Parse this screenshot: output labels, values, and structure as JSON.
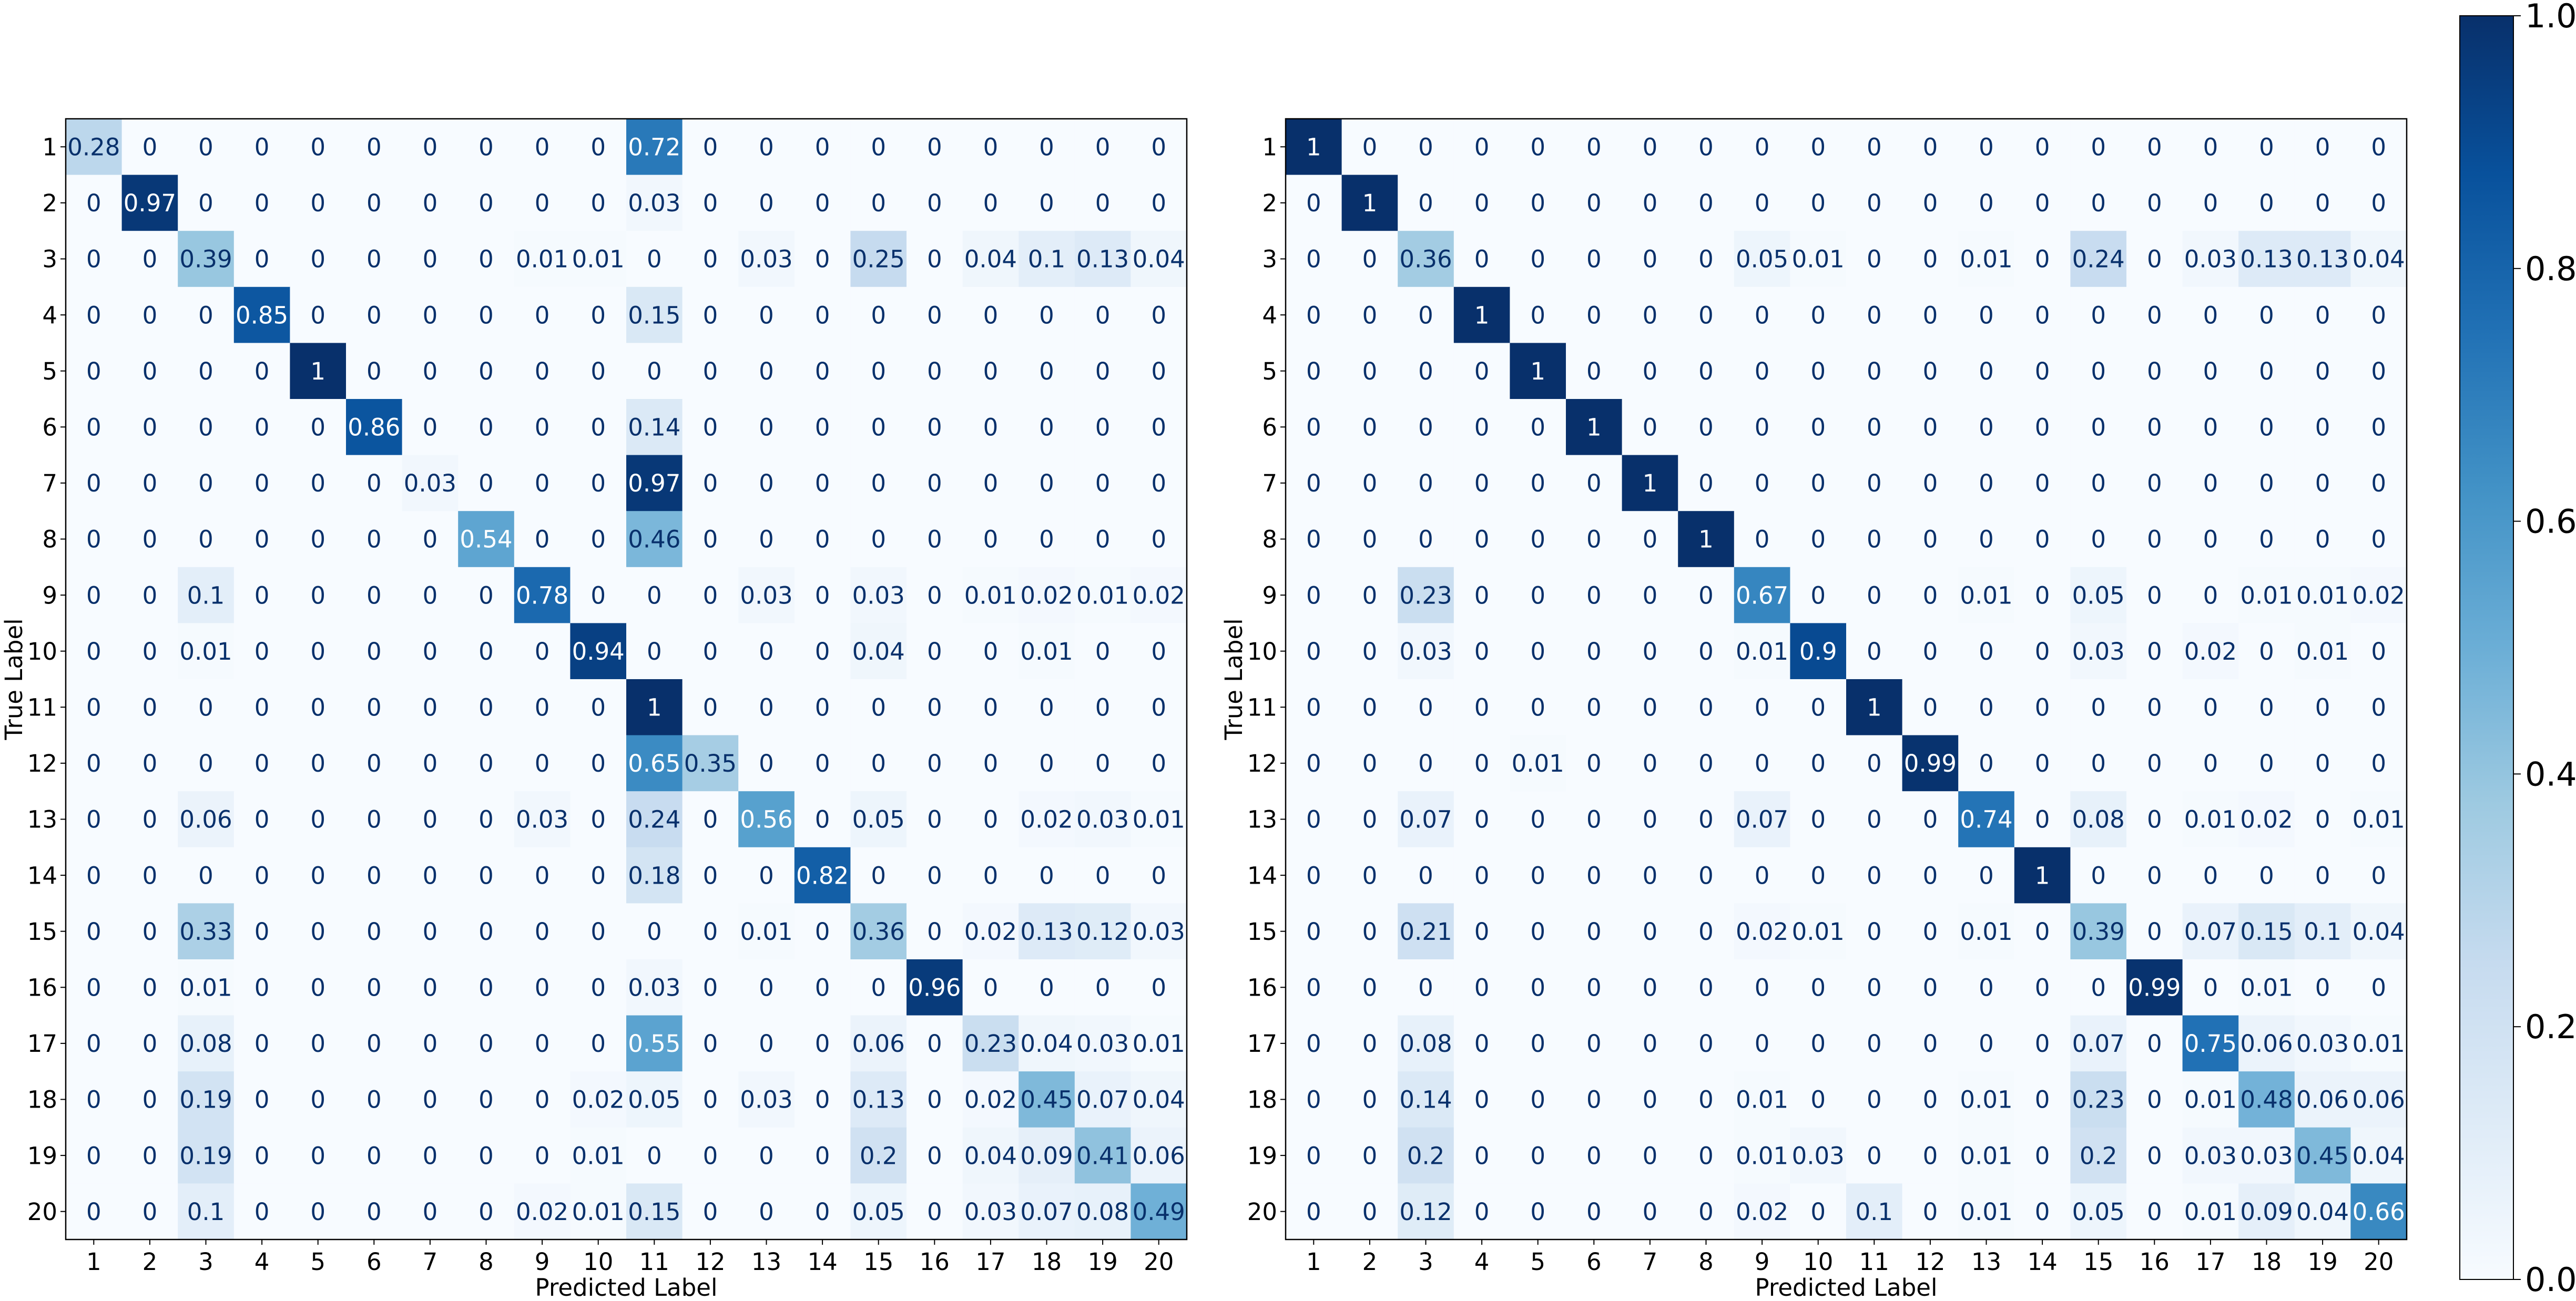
{
  "chart_data": [
    {
      "type": "heatmap",
      "categories": [
        "1",
        "2",
        "3",
        "4",
        "5",
        "6",
        "7",
        "8",
        "9",
        "10",
        "11",
        "12",
        "13",
        "14",
        "15",
        "16",
        "17",
        "18",
        "19",
        "20"
      ],
      "xlabel": "Predicted Label",
      "ylabel": "True Label",
      "matrix": [
        [
          "0.28",
          "0",
          "0",
          "0",
          "0",
          "0",
          "0",
          "0",
          "0",
          "0",
          "0.72",
          "0",
          "0",
          "0",
          "0",
          "0",
          "0",
          "0",
          "0",
          "0"
        ],
        [
          "0",
          "0.97",
          "0",
          "0",
          "0",
          "0",
          "0",
          "0",
          "0",
          "0",
          "0.03",
          "0",
          "0",
          "0",
          "0",
          "0",
          "0",
          "0",
          "0",
          "0"
        ],
        [
          "0",
          "0",
          "0.39",
          "0",
          "0",
          "0",
          "0",
          "0",
          "0.01",
          "0.01",
          "0",
          "0",
          "0.03",
          "0",
          "0.25",
          "0",
          "0.04",
          "0.1",
          "0.13",
          "0.04"
        ],
        [
          "0",
          "0",
          "0",
          "0.85",
          "0",
          "0",
          "0",
          "0",
          "0",
          "0",
          "0.15",
          "0",
          "0",
          "0",
          "0",
          "0",
          "0",
          "0",
          "0",
          "0"
        ],
        [
          "0",
          "0",
          "0",
          "0",
          "1",
          "0",
          "0",
          "0",
          "0",
          "0",
          "0",
          "0",
          "0",
          "0",
          "0",
          "0",
          "0",
          "0",
          "0",
          "0"
        ],
        [
          "0",
          "0",
          "0",
          "0",
          "0",
          "0.86",
          "0",
          "0",
          "0",
          "0",
          "0.14",
          "0",
          "0",
          "0",
          "0",
          "0",
          "0",
          "0",
          "0",
          "0"
        ],
        [
          "0",
          "0",
          "0",
          "0",
          "0",
          "0",
          "0.03",
          "0",
          "0",
          "0",
          "0.97",
          "0",
          "0",
          "0",
          "0",
          "0",
          "0",
          "0",
          "0",
          "0"
        ],
        [
          "0",
          "0",
          "0",
          "0",
          "0",
          "0",
          "0",
          "0.54",
          "0",
          "0",
          "0.46",
          "0",
          "0",
          "0",
          "0",
          "0",
          "0",
          "0",
          "0",
          "0"
        ],
        [
          "0",
          "0",
          "0.1",
          "0",
          "0",
          "0",
          "0",
          "0",
          "0.78",
          "0",
          "0",
          "0",
          "0.03",
          "0",
          "0.03",
          "0",
          "0.01",
          "0.02",
          "0.01",
          "0.02"
        ],
        [
          "0",
          "0",
          "0.01",
          "0",
          "0",
          "0",
          "0",
          "0",
          "0",
          "0.94",
          "0",
          "0",
          "0",
          "0",
          "0.04",
          "0",
          "0",
          "0.01",
          "0",
          "0"
        ],
        [
          "0",
          "0",
          "0",
          "0",
          "0",
          "0",
          "0",
          "0",
          "0",
          "0",
          "1",
          "0",
          "0",
          "0",
          "0",
          "0",
          "0",
          "0",
          "0",
          "0"
        ],
        [
          "0",
          "0",
          "0",
          "0",
          "0",
          "0",
          "0",
          "0",
          "0",
          "0",
          "0.65",
          "0.35",
          "0",
          "0",
          "0",
          "0",
          "0",
          "0",
          "0",
          "0"
        ],
        [
          "0",
          "0",
          "0.06",
          "0",
          "0",
          "0",
          "0",
          "0",
          "0.03",
          "0",
          "0.24",
          "0",
          "0.56",
          "0",
          "0.05",
          "0",
          "0",
          "0.02",
          "0.03",
          "0.01"
        ],
        [
          "0",
          "0",
          "0",
          "0",
          "0",
          "0",
          "0",
          "0",
          "0",
          "0",
          "0.18",
          "0",
          "0",
          "0.82",
          "0",
          "0",
          "0",
          "0",
          "0",
          "0"
        ],
        [
          "0",
          "0",
          "0.33",
          "0",
          "0",
          "0",
          "0",
          "0",
          "0",
          "0",
          "0",
          "0",
          "0.01",
          "0",
          "0.36",
          "0",
          "0.02",
          "0.13",
          "0.12",
          "0.03"
        ],
        [
          "0",
          "0",
          "0.01",
          "0",
          "0",
          "0",
          "0",
          "0",
          "0",
          "0",
          "0.03",
          "0",
          "0",
          "0",
          "0",
          "0.96",
          "0",
          "0",
          "0",
          "0"
        ],
        [
          "0",
          "0",
          "0.08",
          "0",
          "0",
          "0",
          "0",
          "0",
          "0",
          "0",
          "0.55",
          "0",
          "0",
          "0",
          "0.06",
          "0",
          "0.23",
          "0.04",
          "0.03",
          "0.01"
        ],
        [
          "0",
          "0",
          "0.19",
          "0",
          "0",
          "0",
          "0",
          "0",
          "0",
          "0.02",
          "0.05",
          "0",
          "0.03",
          "0",
          "0.13",
          "0",
          "0.02",
          "0.45",
          "0.07",
          "0.04"
        ],
        [
          "0",
          "0",
          "0.19",
          "0",
          "0",
          "0",
          "0",
          "0",
          "0",
          "0.01",
          "0",
          "0",
          "0",
          "0",
          "0.2",
          "0",
          "0.04",
          "0.09",
          "0.41",
          "0.06"
        ],
        [
          "0",
          "0",
          "0.1",
          "0",
          "0",
          "0",
          "0",
          "0",
          "0.02",
          "0.01",
          "0.15",
          "0",
          "0",
          "0",
          "0.05",
          "0",
          "0.03",
          "0.07",
          "0.08",
          "0.49"
        ]
      ]
    },
    {
      "type": "heatmap",
      "categories": [
        "1",
        "2",
        "3",
        "4",
        "5",
        "6",
        "7",
        "8",
        "9",
        "10",
        "11",
        "12",
        "13",
        "14",
        "15",
        "16",
        "17",
        "18",
        "19",
        "20"
      ],
      "xlabel": "Predicted Label",
      "ylabel": "True Label",
      "matrix": [
        [
          "1",
          "0",
          "0",
          "0",
          "0",
          "0",
          "0",
          "0",
          "0",
          "0",
          "0",
          "0",
          "0",
          "0",
          "0",
          "0",
          "0",
          "0",
          "0",
          "0"
        ],
        [
          "0",
          "1",
          "0",
          "0",
          "0",
          "0",
          "0",
          "0",
          "0",
          "0",
          "0",
          "0",
          "0",
          "0",
          "0",
          "0",
          "0",
          "0",
          "0",
          "0"
        ],
        [
          "0",
          "0",
          "0.36",
          "0",
          "0",
          "0",
          "0",
          "0",
          "0.05",
          "0.01",
          "0",
          "0",
          "0.01",
          "0",
          "0.24",
          "0",
          "0.03",
          "0.13",
          "0.13",
          "0.04"
        ],
        [
          "0",
          "0",
          "0",
          "1",
          "0",
          "0",
          "0",
          "0",
          "0",
          "0",
          "0",
          "0",
          "0",
          "0",
          "0",
          "0",
          "0",
          "0",
          "0",
          "0"
        ],
        [
          "0",
          "0",
          "0",
          "0",
          "1",
          "0",
          "0",
          "0",
          "0",
          "0",
          "0",
          "0",
          "0",
          "0",
          "0",
          "0",
          "0",
          "0",
          "0",
          "0"
        ],
        [
          "0",
          "0",
          "0",
          "0",
          "0",
          "1",
          "0",
          "0",
          "0",
          "0",
          "0",
          "0",
          "0",
          "0",
          "0",
          "0",
          "0",
          "0",
          "0",
          "0"
        ],
        [
          "0",
          "0",
          "0",
          "0",
          "0",
          "0",
          "1",
          "0",
          "0",
          "0",
          "0",
          "0",
          "0",
          "0",
          "0",
          "0",
          "0",
          "0",
          "0",
          "0"
        ],
        [
          "0",
          "0",
          "0",
          "0",
          "0",
          "0",
          "0",
          "1",
          "0",
          "0",
          "0",
          "0",
          "0",
          "0",
          "0",
          "0",
          "0",
          "0",
          "0",
          "0"
        ],
        [
          "0",
          "0",
          "0.23",
          "0",
          "0",
          "0",
          "0",
          "0",
          "0.67",
          "0",
          "0",
          "0",
          "0.01",
          "0",
          "0.05",
          "0",
          "0",
          "0.01",
          "0.01",
          "0.02"
        ],
        [
          "0",
          "0",
          "0.03",
          "0",
          "0",
          "0",
          "0",
          "0",
          "0.01",
          "0.9",
          "0",
          "0",
          "0",
          "0",
          "0.03",
          "0",
          "0.02",
          "0",
          "0.01",
          "0"
        ],
        [
          "0",
          "0",
          "0",
          "0",
          "0",
          "0",
          "0",
          "0",
          "0",
          "0",
          "1",
          "0",
          "0",
          "0",
          "0",
          "0",
          "0",
          "0",
          "0",
          "0"
        ],
        [
          "0",
          "0",
          "0",
          "0",
          "0.01",
          "0",
          "0",
          "0",
          "0",
          "0",
          "0",
          "0.99",
          "0",
          "0",
          "0",
          "0",
          "0",
          "0",
          "0",
          "0"
        ],
        [
          "0",
          "0",
          "0.07",
          "0",
          "0",
          "0",
          "0",
          "0",
          "0.07",
          "0",
          "0",
          "0",
          "0.74",
          "0",
          "0.08",
          "0",
          "0.01",
          "0.02",
          "0",
          "0.01"
        ],
        [
          "0",
          "0",
          "0",
          "0",
          "0",
          "0",
          "0",
          "0",
          "0",
          "0",
          "0",
          "0",
          "0",
          "1",
          "0",
          "0",
          "0",
          "0",
          "0",
          "0"
        ],
        [
          "0",
          "0",
          "0.21",
          "0",
          "0",
          "0",
          "0",
          "0",
          "0.02",
          "0.01",
          "0",
          "0",
          "0.01",
          "0",
          "0.39",
          "0",
          "0.07",
          "0.15",
          "0.1",
          "0.04"
        ],
        [
          "0",
          "0",
          "0",
          "0",
          "0",
          "0",
          "0",
          "0",
          "0",
          "0",
          "0",
          "0",
          "0",
          "0",
          "0",
          "0.99",
          "0",
          "0.01",
          "0",
          "0"
        ],
        [
          "0",
          "0",
          "0.08",
          "0",
          "0",
          "0",
          "0",
          "0",
          "0",
          "0",
          "0",
          "0",
          "0",
          "0",
          "0.07",
          "0",
          "0.75",
          "0.06",
          "0.03",
          "0.01"
        ],
        [
          "0",
          "0",
          "0.14",
          "0",
          "0",
          "0",
          "0",
          "0",
          "0.01",
          "0",
          "0",
          "0",
          "0.01",
          "0",
          "0.23",
          "0",
          "0.01",
          "0.48",
          "0.06",
          "0.06"
        ],
        [
          "0",
          "0",
          "0.2",
          "0",
          "0",
          "0",
          "0",
          "0",
          "0.01",
          "0.03",
          "0",
          "0",
          "0.01",
          "0",
          "0.2",
          "0",
          "0.03",
          "0.03",
          "0.45",
          "0.04"
        ],
        [
          "0",
          "0",
          "0.12",
          "0",
          "0",
          "0",
          "0",
          "0",
          "0.02",
          "0",
          "0.1",
          "0",
          "0.01",
          "0",
          "0.05",
          "0",
          "0.01",
          "0.09",
          "0.04",
          "0.66"
        ]
      ]
    }
  ],
  "colorbar": {
    "colormap": "Blues",
    "range": [
      0,
      1
    ],
    "ticks": [
      "0.0",
      "0.2",
      "0.4",
      "0.6",
      "0.8",
      "1.0"
    ]
  }
}
